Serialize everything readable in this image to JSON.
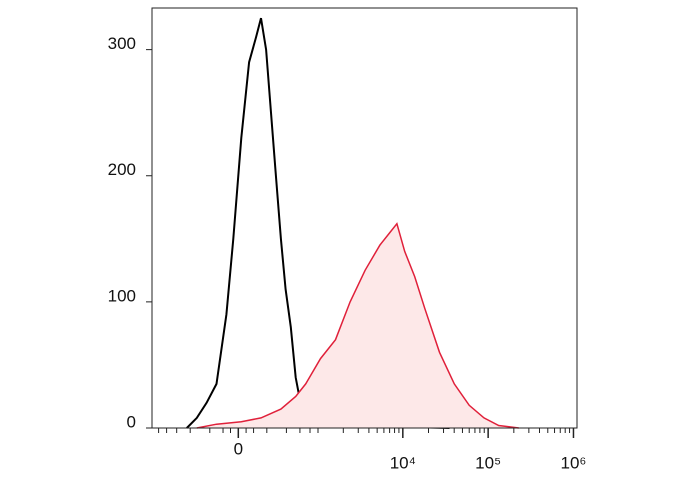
{
  "chart_data": {
    "type": "line",
    "xscale": "arcsinh",
    "linear_width": 236,
    "xlim": [
      -1200,
      1100000
    ],
    "xticks": [
      0,
      {
        "value": 10000,
        "label": "10⁴"
      },
      {
        "value": 100000,
        "label": "10⁵"
      },
      {
        "value": 1000000,
        "label": "10⁶"
      }
    ],
    "xminor_ticks": [
      -1000,
      -800,
      -600,
      -400,
      -200,
      -100,
      -50,
      50,
      100,
      200,
      400,
      600,
      800,
      1000,
      2000,
      3000,
      4000,
      5000,
      6000,
      7000,
      8000,
      9000,
      20000,
      30000,
      40000,
      50000,
      60000,
      70000,
      80000,
      90000,
      200000,
      300000,
      400000,
      500000,
      600000,
      700000,
      800000,
      900000
    ],
    "ylim": [
      0,
      333
    ],
    "yticks": [
      0,
      100,
      200,
      300
    ],
    "series": [
      {
        "color": "#000000",
        "fill": null,
        "x": [
          -444,
          -323,
          -227,
          -147,
          -77,
          -32,
          19,
          70,
          118,
          154,
          194,
          236,
          283,
          335,
          390,
          458,
          531,
          611,
          812,
          1071,
          2407,
          9228,
          35200
        ],
        "values": [
          0,
          8,
          20,
          35,
          90,
          150,
          230,
          290,
          310,
          325,
          300,
          250,
          200,
          150,
          110,
          80,
          40,
          20,
          8,
          3,
          2,
          1,
          0
        ]
      },
      {
        "color": "#e0203a",
        "fill": "#fde8e8",
        "x": [
          -323,
          -147,
          19,
          154,
          335,
          531,
          708,
          1071,
          1617,
          2407,
          3611,
          5381,
          7056,
          8520,
          10526,
          13782,
          18030,
          26900,
          40100,
          60000,
          89400,
          133000,
          229000
        ],
        "values": [
          0,
          3,
          5,
          8,
          15,
          25,
          35,
          55,
          70,
          100,
          125,
          145,
          155,
          162,
          140,
          120,
          95,
          60,
          35,
          18,
          8,
          2,
          0
        ]
      }
    ]
  }
}
